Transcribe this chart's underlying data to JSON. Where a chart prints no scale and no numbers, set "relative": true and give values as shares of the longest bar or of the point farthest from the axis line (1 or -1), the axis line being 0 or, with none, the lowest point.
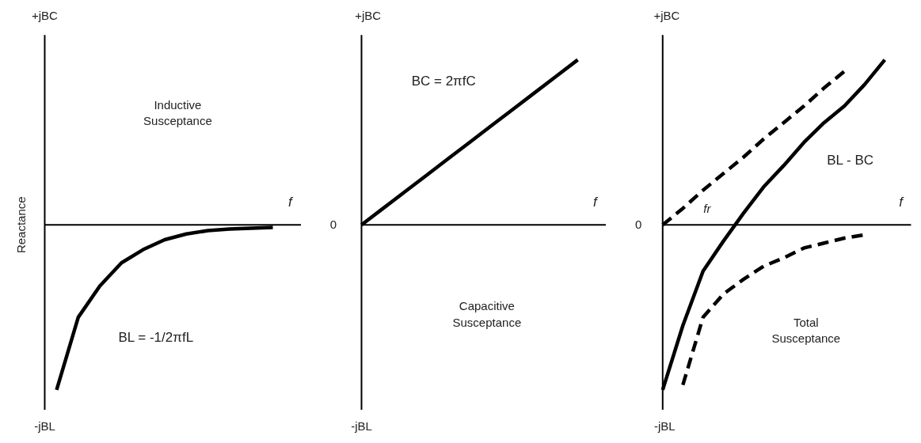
{
  "chart_data": [
    {
      "type": "line",
      "relative": true,
      "xlabel": "f",
      "ylabel": "Reactance",
      "categories": [
        null,
        null,
        null,
        null,
        null,
        null,
        null,
        null,
        null,
        null,
        null
      ],
      "series": [
        {
          "name": "BL = -1/2πfL",
          "color": "#000000",
          "line_style": "solid",
          "values": [
            -1,
            -0.56,
            -0.37,
            -0.23,
            -0.15,
            -0.09,
            -0.055,
            -0.035,
            -0.025,
            -0.02,
            -0.015
          ]
        }
      ],
      "annotations": [
        "+jBC",
        "-jBL",
        "Inductive Susceptance"
      ]
    },
    {
      "type": "line",
      "relative": true,
      "xlabel": "f",
      "categories": [
        null,
        null,
        null,
        null,
        null,
        null,
        null,
        null,
        null,
        null,
        null
      ],
      "series": [
        {
          "name": "BC = 2πfC",
          "color": "#000000",
          "line_style": "solid",
          "values": [
            0,
            0.1,
            0.2,
            0.3,
            0.4,
            0.5,
            0.6,
            0.7,
            0.8,
            0.9,
            1
          ]
        }
      ],
      "annotations": [
        "+jBC",
        "0",
        "-jBL",
        "Capacitive Susceptance"
      ]
    },
    {
      "type": "line",
      "relative": true,
      "xlabel": "f",
      "categories": [
        null,
        null,
        null,
        null,
        null,
        null,
        null,
        null,
        null,
        null,
        null,
        null
      ],
      "series": [
        {
          "name": "BL - BC",
          "color": "#000000",
          "line_style": "solid",
          "values": [
            -1,
            -0.61,
            -0.28,
            -0.1,
            0.07,
            0.23,
            0.36,
            0.5,
            0.62,
            0.72,
            0.85,
            1
          ]
        },
        {
          "color": "#000000",
          "line_style": "dashed",
          "values": [
            0,
            0.1,
            0.21,
            0.31,
            0.41,
            0.52,
            0.62,
            0.72,
            0.83,
            0.93,
            null,
            null
          ]
        },
        {
          "color": "#000000",
          "line_style": "dashed",
          "values": [
            null,
            -0.97,
            -0.56,
            -0.42,
            -0.33,
            -0.25,
            -0.2,
            -0.14,
            -0.11,
            -0.08,
            -0.06,
            null
          ]
        }
      ],
      "annotations": [
        "+jBC",
        "0",
        "-jBL",
        "Total Susceptance",
        "fr"
      ]
    }
  ]
}
